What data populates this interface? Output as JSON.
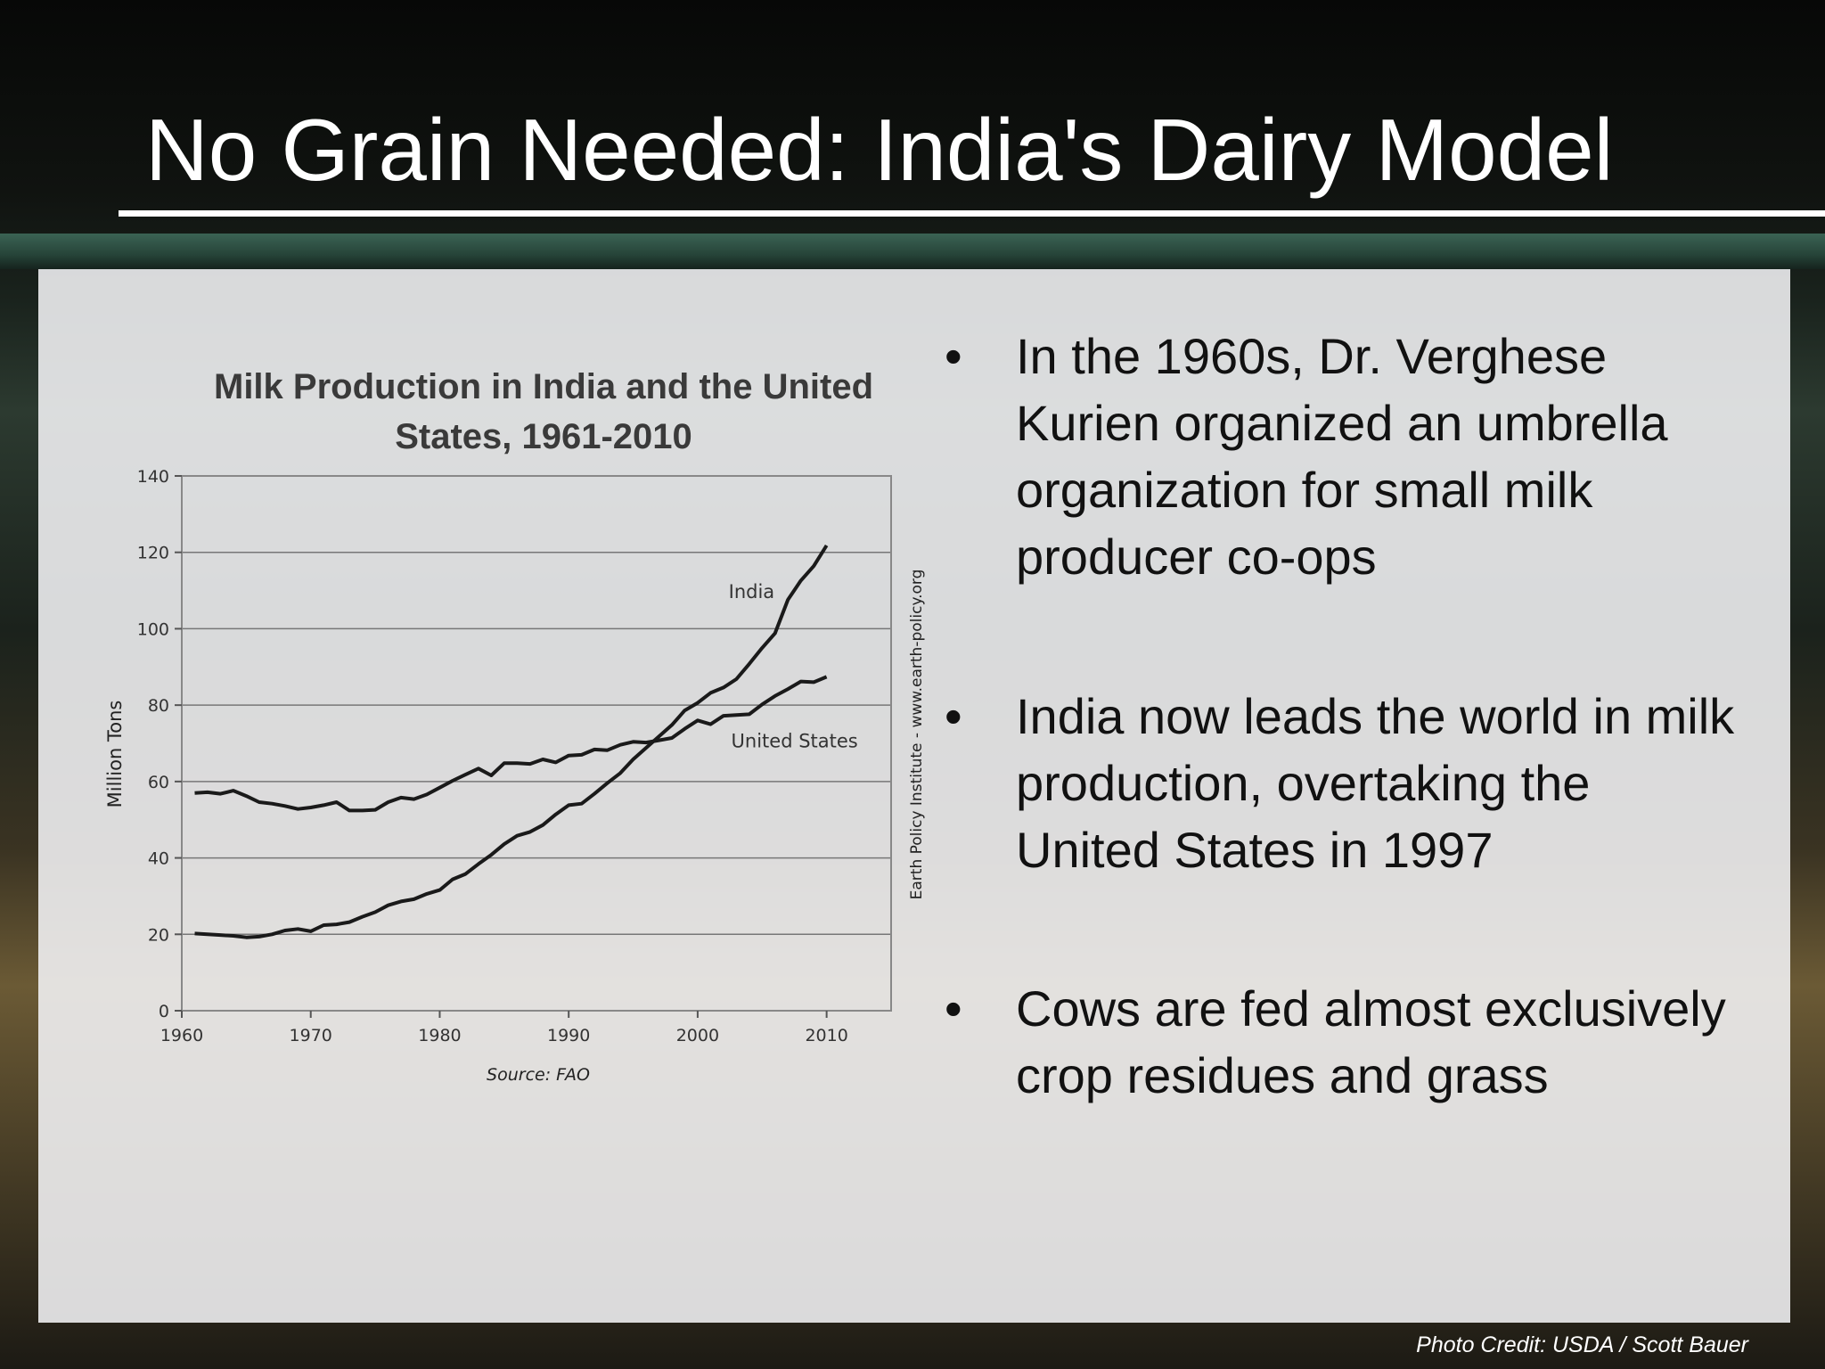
{
  "slide": {
    "title": "No Grain Needed: India's Dairy Model",
    "photo_credit": "Photo Credit: USDA / Scott Bauer"
  },
  "bullets": [
    "In the 1960s, Dr. Verghese Kurien organized an umbrella organization for small milk producer co-ops",
    "India now leads the world in milk production, overtaking the United States in 1997",
    "Cows are fed almost exclusively crop residues and grass"
  ],
  "bullet_symbol": "•",
  "colors": {
    "title": "#ffffff",
    "line": "#1a1a1a",
    "grid": "#777777",
    "panel": "#f4f4f6"
  },
  "chart_data": {
    "type": "line",
    "title": "Milk Production in India and the United States, 1961-2010",
    "ylabel": "Million Tons",
    "xlabel": "",
    "source": "Source: FAO",
    "credit": "Earth Policy Institute - www.earth-policy.org",
    "xlim": [
      1960,
      2015
    ],
    "ylim": [
      0,
      140
    ],
    "xticks": [
      1960,
      1970,
      1980,
      1990,
      2000,
      2010
    ],
    "yticks": [
      0,
      20,
      40,
      60,
      80,
      100,
      120,
      140
    ],
    "grid": true,
    "series": [
      {
        "name": "India",
        "x": [
          1961,
          1962,
          1963,
          1964,
          1965,
          1966,
          1967,
          1968,
          1969,
          1970,
          1971,
          1972,
          1973,
          1974,
          1975,
          1976,
          1977,
          1978,
          1979,
          1980,
          1981,
          1982,
          1983,
          1984,
          1985,
          1986,
          1987,
          1988,
          1989,
          1990,
          1991,
          1992,
          1993,
          1994,
          1995,
          1996,
          1997,
          1998,
          1999,
          2000,
          2001,
          2002,
          2003,
          2004,
          2005,
          2006,
          2007,
          2008,
          2009,
          2010
        ],
        "y": [
          20.2,
          20,
          19.8,
          19.6,
          19.2,
          19.4,
          20,
          21,
          21.4,
          20.8,
          22.4,
          22.6,
          23.2,
          24.6,
          25.8,
          27.6,
          28.6,
          29.2,
          30.6,
          31.6,
          34.4,
          35.8,
          38.4,
          40.8,
          43.6,
          45.8,
          46.8,
          48.6,
          51.4,
          53.8,
          54.2,
          56.8,
          59.6,
          62.2,
          65.8,
          68.8,
          71.8,
          74.8,
          78.6,
          80.6,
          83.2,
          84.6,
          86.8,
          90.8,
          95,
          98.8,
          107.6,
          112.6,
          116.4,
          121.8
        ]
      },
      {
        "name": "United States",
        "x": [
          1961,
          1962,
          1963,
          1964,
          1965,
          1966,
          1967,
          1968,
          1969,
          1970,
          1971,
          1972,
          1973,
          1974,
          1975,
          1976,
          1977,
          1978,
          1979,
          1980,
          1981,
          1982,
          1983,
          1984,
          1985,
          1986,
          1987,
          1988,
          1989,
          1990,
          1991,
          1992,
          1993,
          1994,
          1995,
          1996,
          1997,
          1998,
          1999,
          2000,
          2001,
          2002,
          2003,
          2004,
          2005,
          2006,
          2007,
          2008,
          2009,
          2010
        ],
        "y": [
          57,
          57.2,
          56.8,
          57.6,
          56.2,
          54.6,
          54.2,
          53.6,
          52.8,
          53.2,
          53.8,
          54.6,
          52.4,
          52.4,
          52.6,
          54.6,
          55.8,
          55.4,
          56.6,
          58.4,
          60.2,
          61.8,
          63.4,
          61.6,
          64.8,
          64.8,
          64.6,
          65.8,
          65,
          66.8,
          67,
          68.4,
          68.2,
          69.6,
          70.4,
          70.2,
          70.8,
          71.4,
          73.8,
          76,
          75,
          77.2,
          77.4,
          77.6,
          80.2,
          82.4,
          84.2,
          86.2,
          86,
          87.4
        ]
      }
    ],
    "annotations": [
      "India",
      "United States"
    ]
  }
}
